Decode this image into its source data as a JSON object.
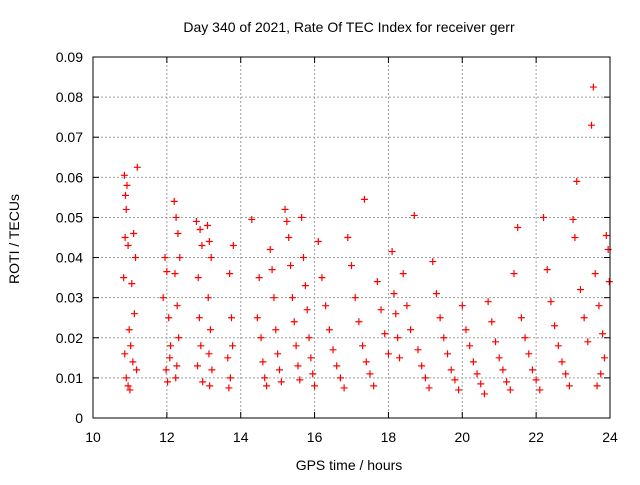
{
  "chart_data": {
    "type": "scatter",
    "title": "Day 340 of 2021, Rate Of TEC Index for receiver gerr",
    "xlabel": "GPS time / hours",
    "ylabel": "ROTI / TECUs",
    "xlim": [
      10,
      24
    ],
    "ylim": [
      0,
      0.09
    ],
    "xticks": [
      10,
      12,
      14,
      16,
      18,
      20,
      22,
      24
    ],
    "yticks": [
      0,
      0.01,
      0.02,
      0.03,
      0.04,
      0.05,
      0.06,
      0.07,
      0.08,
      0.09
    ],
    "grid": true,
    "marker": "+",
    "color": "#ff0000",
    "series": [
      {
        "points": [
          [
            10.85,
            0.0605
          ],
          [
            10.88,
            0.0555
          ],
          [
            10.9,
            0.052
          ],
          [
            10.92,
            0.058
          ],
          [
            10.87,
            0.045
          ],
          [
            10.95,
            0.043
          ],
          [
            10.83,
            0.035
          ],
          [
            11.2,
            0.0625
          ],
          [
            11.05,
            0.0335
          ],
          [
            11.1,
            0.046
          ],
          [
            11.15,
            0.04
          ],
          [
            10.98,
            0.022
          ],
          [
            11.02,
            0.018
          ],
          [
            11.08,
            0.014
          ],
          [
            11.12,
            0.026
          ],
          [
            10.9,
            0.01
          ],
          [
            10.95,
            0.008
          ],
          [
            11.0,
            0.007
          ],
          [
            11.18,
            0.012
          ],
          [
            10.86,
            0.016
          ],
          [
            11.95,
            0.04
          ],
          [
            12.0,
            0.0365
          ],
          [
            12.05,
            0.025
          ],
          [
            11.9,
            0.03
          ],
          [
            12.1,
            0.018
          ],
          [
            11.98,
            0.012
          ],
          [
            12.02,
            0.009
          ],
          [
            12.08,
            0.015
          ],
          [
            12.2,
            0.054
          ],
          [
            12.25,
            0.05
          ],
          [
            12.3,
            0.046
          ],
          [
            12.22,
            0.036
          ],
          [
            12.28,
            0.028
          ],
          [
            12.35,
            0.04
          ],
          [
            12.32,
            0.02
          ],
          [
            12.27,
            0.013
          ],
          [
            12.24,
            0.01
          ],
          [
            12.8,
            0.049
          ],
          [
            12.9,
            0.047
          ],
          [
            12.95,
            0.043
          ],
          [
            12.85,
            0.035
          ],
          [
            12.88,
            0.025
          ],
          [
            12.92,
            0.018
          ],
          [
            12.83,
            0.013
          ],
          [
            12.97,
            0.009
          ],
          [
            13.1,
            0.048
          ],
          [
            13.15,
            0.044
          ],
          [
            13.2,
            0.04
          ],
          [
            13.12,
            0.03
          ],
          [
            13.18,
            0.022
          ],
          [
            13.14,
            0.016
          ],
          [
            13.22,
            0.012
          ],
          [
            13.16,
            0.008
          ],
          [
            13.8,
            0.043
          ],
          [
            13.7,
            0.036
          ],
          [
            13.75,
            0.025
          ],
          [
            13.78,
            0.018
          ],
          [
            13.65,
            0.015
          ],
          [
            13.72,
            0.01
          ],
          [
            13.68,
            0.0075
          ],
          [
            14.3,
            0.0495
          ],
          [
            14.45,
            0.025
          ],
          [
            14.5,
            0.035
          ],
          [
            14.55,
            0.02
          ],
          [
            14.6,
            0.014
          ],
          [
            14.65,
            0.01
          ],
          [
            14.7,
            0.008
          ],
          [
            14.8,
            0.042
          ],
          [
            14.85,
            0.037
          ],
          [
            14.9,
            0.03
          ],
          [
            14.95,
            0.022
          ],
          [
            15.0,
            0.016
          ],
          [
            15.05,
            0.012
          ],
          [
            15.1,
            0.009
          ],
          [
            15.2,
            0.052
          ],
          [
            15.25,
            0.049
          ],
          [
            15.3,
            0.045
          ],
          [
            15.35,
            0.038
          ],
          [
            15.4,
            0.03
          ],
          [
            15.45,
            0.024
          ],
          [
            15.5,
            0.018
          ],
          [
            15.55,
            0.013
          ],
          [
            15.6,
            0.0095
          ],
          [
            15.65,
            0.05
          ],
          [
            15.7,
            0.04
          ],
          [
            15.75,
            0.033
          ],
          [
            15.8,
            0.027
          ],
          [
            15.85,
            0.02
          ],
          [
            15.9,
            0.015
          ],
          [
            15.95,
            0.011
          ],
          [
            16.0,
            0.008
          ],
          [
            16.1,
            0.044
          ],
          [
            16.2,
            0.035
          ],
          [
            16.3,
            0.028
          ],
          [
            16.4,
            0.022
          ],
          [
            16.5,
            0.017
          ],
          [
            16.6,
            0.013
          ],
          [
            16.7,
            0.01
          ],
          [
            16.8,
            0.0075
          ],
          [
            16.9,
            0.045
          ],
          [
            17.0,
            0.038
          ],
          [
            17.1,
            0.03
          ],
          [
            17.2,
            0.024
          ],
          [
            17.3,
            0.018
          ],
          [
            17.35,
            0.0545
          ],
          [
            17.4,
            0.014
          ],
          [
            17.5,
            0.011
          ],
          [
            17.6,
            0.008
          ],
          [
            17.7,
            0.034
          ],
          [
            17.8,
            0.027
          ],
          [
            17.9,
            0.021
          ],
          [
            18.0,
            0.016
          ],
          [
            18.1,
            0.0415
          ],
          [
            18.15,
            0.031
          ],
          [
            18.2,
            0.026
          ],
          [
            18.25,
            0.02
          ],
          [
            18.3,
            0.015
          ],
          [
            18.4,
            0.036
          ],
          [
            18.5,
            0.028
          ],
          [
            18.6,
            0.022
          ],
          [
            18.7,
            0.0505
          ],
          [
            18.8,
            0.017
          ],
          [
            18.9,
            0.013
          ],
          [
            19.0,
            0.01
          ],
          [
            19.1,
            0.0075
          ],
          [
            19.2,
            0.039
          ],
          [
            19.3,
            0.031
          ],
          [
            19.4,
            0.025
          ],
          [
            19.5,
            0.02
          ],
          [
            19.6,
            0.016
          ],
          [
            19.7,
            0.012
          ],
          [
            19.8,
            0.0095
          ],
          [
            19.9,
            0.007
          ],
          [
            20.0,
            0.028
          ],
          [
            20.1,
            0.022
          ],
          [
            20.2,
            0.018
          ],
          [
            20.3,
            0.014
          ],
          [
            20.4,
            0.011
          ],
          [
            20.5,
            0.0085
          ],
          [
            20.6,
            0.006
          ],
          [
            20.7,
            0.029
          ],
          [
            20.8,
            0.024
          ],
          [
            20.9,
            0.019
          ],
          [
            21.0,
            0.015
          ],
          [
            21.1,
            0.012
          ],
          [
            21.2,
            0.009
          ],
          [
            21.3,
            0.007
          ],
          [
            21.4,
            0.036
          ],
          [
            21.5,
            0.0475
          ],
          [
            21.6,
            0.025
          ],
          [
            21.7,
            0.02
          ],
          [
            21.8,
            0.016
          ],
          [
            21.9,
            0.012
          ],
          [
            22.0,
            0.0095
          ],
          [
            22.1,
            0.007
          ],
          [
            22.2,
            0.05
          ],
          [
            22.3,
            0.037
          ],
          [
            22.4,
            0.029
          ],
          [
            22.5,
            0.023
          ],
          [
            22.6,
            0.018
          ],
          [
            22.7,
            0.014
          ],
          [
            22.8,
            0.011
          ],
          [
            22.9,
            0.008
          ],
          [
            23.0,
            0.0495
          ],
          [
            23.05,
            0.045
          ],
          [
            23.1,
            0.059
          ],
          [
            23.2,
            0.032
          ],
          [
            23.3,
            0.025
          ],
          [
            23.4,
            0.019
          ],
          [
            23.5,
            0.073
          ],
          [
            23.55,
            0.0825
          ],
          [
            23.6,
            0.036
          ],
          [
            23.7,
            0.028
          ],
          [
            23.8,
            0.021
          ],
          [
            23.9,
            0.0455
          ],
          [
            23.95,
            0.042
          ],
          [
            23.98,
            0.034
          ],
          [
            23.85,
            0.015
          ],
          [
            23.75,
            0.011
          ],
          [
            23.65,
            0.008
          ]
        ]
      }
    ]
  }
}
